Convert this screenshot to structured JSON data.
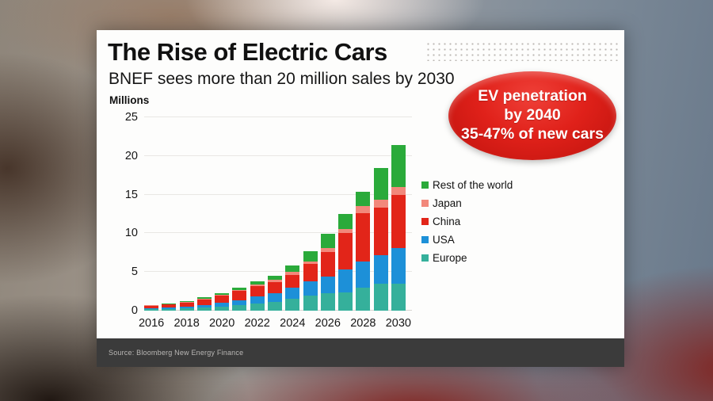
{
  "header": {
    "title": "The Rise of Electric Cars",
    "subtitle": "BNEF sees more than 20 million sales by 2030"
  },
  "badge": {
    "lines": [
      "EV penetration",
      "by 2040",
      "35-47% of new cars"
    ],
    "background_color": "#da1f18",
    "text_color": "#ffffff"
  },
  "footer": {
    "source": "Source: Bloomberg New Energy Finance"
  },
  "chart_data": {
    "type": "bar",
    "stacked": true,
    "title": "The Rise of Electric Cars",
    "subtitle": "BNEF sees more than 20 million sales by 2030",
    "ylabel": "Millions",
    "xlabel": "",
    "ylim": [
      0,
      25
    ],
    "y_ticks": [
      0,
      5,
      10,
      15,
      20,
      25
    ],
    "grid": "horizontal",
    "legend_position": "right",
    "categories": [
      2016,
      2017,
      2018,
      2019,
      2020,
      2021,
      2022,
      2023,
      2024,
      2025,
      2026,
      2027,
      2028,
      2029,
      2030
    ],
    "x_tick_labels": [
      "2016",
      "2018",
      "2020",
      "2022",
      "2024",
      "2026",
      "2028",
      "2030"
    ],
    "series": [
      {
        "name": "Europe",
        "color": "#35b09b",
        "values": [
          0.2,
          0.25,
          0.3,
          0.4,
          0.55,
          0.75,
          0.95,
          1.15,
          1.5,
          1.9,
          2.25,
          2.4,
          3.0,
          3.45,
          3.5
        ]
      },
      {
        "name": "USA",
        "color": "#1d90d8",
        "values": [
          0.15,
          0.15,
          0.2,
          0.3,
          0.45,
          0.6,
          0.85,
          1.1,
          1.45,
          1.9,
          2.2,
          2.9,
          3.35,
          3.75,
          4.6
        ]
      },
      {
        "name": "China",
        "color": "#e22519",
        "values": [
          0.3,
          0.38,
          0.55,
          0.75,
          0.95,
          1.2,
          1.4,
          1.45,
          1.7,
          2.2,
          3.1,
          4.7,
          6.3,
          6.15,
          6.9
        ]
      },
      {
        "name": "Japan",
        "color": "#f2887b",
        "values": [
          0.05,
          0.05,
          0.07,
          0.1,
          0.12,
          0.15,
          0.2,
          0.3,
          0.35,
          0.4,
          0.5,
          0.6,
          0.85,
          0.95,
          1.0
        ]
      },
      {
        "name": "Rest of the world",
        "color": "#2aaa3a",
        "values": [
          0.05,
          0.07,
          0.1,
          0.15,
          0.23,
          0.3,
          0.4,
          0.55,
          0.85,
          1.3,
          1.9,
          1.9,
          1.9,
          4.1,
          5.4
        ]
      }
    ],
    "totals": [
      0.75,
      0.9,
      1.22,
      1.7,
      2.3,
      3.0,
      3.8,
      4.55,
      5.85,
      7.7,
      9.95,
      12.5,
      15.4,
      18.4,
      21.4
    ]
  }
}
